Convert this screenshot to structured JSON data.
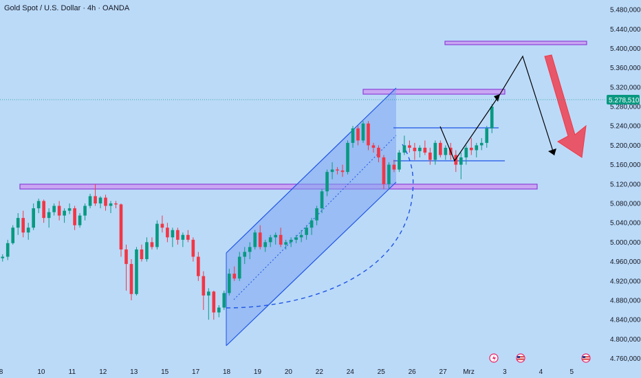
{
  "title": "Gold Spot / U.S. Dollar · 4h · OANDA",
  "current_price_label": "5.278,510",
  "colors": {
    "background": "#bbdaf8",
    "up": "#089981",
    "down": "#f23645",
    "zone_fill": "#c9a6f2",
    "zone_stroke": "#8b3fd8",
    "channel_fill": "#7ea6f0",
    "channel_stroke": "#1e53e5",
    "price_badge": "#089981",
    "arrow": "#f23645"
  },
  "chart_data": {
    "type": "candlestick",
    "title": "Gold Spot / U.S. Dollar · 4h · OANDA",
    "y_tick_labels": [
      "5.480,000",
      "5.440,000",
      "5.400,000",
      "5.360,000",
      "5.320,000",
      "5.280,000",
      "5.240,000",
      "5.200,000",
      "5.160,000",
      "5.120,000",
      "5.080,000",
      "5.040,000",
      "5.000,000",
      "4.960,000",
      "4.920,000",
      "4.880,000",
      "4.840,000",
      "4.800,000",
      "4.760,000"
    ],
    "y_ticks": [
      5480,
      5440,
      5400,
      5360,
      5320,
      5280,
      5240,
      5200,
      5160,
      5120,
      5080,
      5040,
      5000,
      4960,
      4920,
      4880,
      4840,
      4800,
      4760
    ],
    "ylim": [
      4748,
      5500
    ],
    "x_tick_labels": [
      "8",
      "10",
      "11",
      "12",
      "13",
      "15",
      "17",
      "18",
      "19",
      "20",
      "22",
      "24",
      "25",
      "26",
      "27",
      "Mrz",
      "3",
      "4",
      "5"
    ],
    "x_tick_index": [
      -0.3,
      7.5,
      13.5,
      19.5,
      25.5,
      31.5,
      37.5,
      43.5,
      49.5,
      55.5,
      61.5,
      67.5,
      73.5,
      79.5,
      85.5,
      90.5,
      97.5,
      104.5,
      110.5
    ],
    "x_range": [
      -0.5,
      117
    ],
    "current_price": 5278.51,
    "candles": [
      [
        4967,
        4975,
        4960,
        4970
      ],
      [
        4970,
        5005,
        4963,
        4998
      ],
      [
        4998,
        5035,
        4995,
        5030
      ],
      [
        5030,
        5060,
        5015,
        5050
      ],
      [
        5050,
        5065,
        5010,
        5020
      ],
      [
        5020,
        5040,
        5005,
        5030
      ],
      [
        5030,
        5080,
        5025,
        5070
      ],
      [
        5070,
        5090,
        5060,
        5085
      ],
      [
        5085,
        5088,
        5040,
        5050
      ],
      [
        5050,
        5070,
        5030,
        5062
      ],
      [
        5062,
        5080,
        5055,
        5075
      ],
      [
        5075,
        5085,
        5045,
        5055
      ],
      [
        5055,
        5070,
        5040,
        5065
      ],
      [
        5065,
        5080,
        5058,
        5070
      ],
      [
        5070,
        5075,
        5025,
        5035
      ],
      [
        5035,
        5060,
        5030,
        5055
      ],
      [
        5055,
        5080,
        5045,
        5075
      ],
      [
        5075,
        5100,
        5070,
        5095
      ],
      [
        5095,
        5120,
        5075,
        5080
      ],
      [
        5080,
        5095,
        5070,
        5092
      ],
      [
        5092,
        5098,
        5065,
        5075
      ],
      [
        5075,
        5085,
        5060,
        5080
      ],
      [
        5080,
        5085,
        5070,
        5078
      ],
      [
        5078,
        5080,
        4970,
        4985
      ],
      [
        4985,
        4995,
        4900,
        4955
      ],
      [
        4955,
        4965,
        4880,
        4893
      ],
      [
        4893,
        4990,
        4890,
        4985
      ],
      [
        4985,
        4995,
        4960,
        4965
      ],
      [
        4965,
        5010,
        4960,
        5000
      ],
      [
        5000,
        5010,
        4985,
        4990
      ],
      [
        4990,
        5045,
        4985,
        5038
      ],
      [
        5038,
        5055,
        5020,
        5030
      ],
      [
        5030,
        5040,
        5000,
        5010
      ],
      [
        5010,
        5030,
        4990,
        5025
      ],
      [
        5025,
        5030,
        4995,
        5005
      ],
      [
        5005,
        5020,
        4990,
        5015
      ],
      [
        5015,
        5025,
        5000,
        5005
      ],
      [
        5005,
        5010,
        4960,
        4970
      ],
      [
        4970,
        4980,
        4920,
        4930
      ],
      [
        4930,
        4940,
        4860,
        4890
      ],
      [
        4890,
        4905,
        4840,
        4898
      ],
      [
        4898,
        4900,
        4840,
        4855
      ],
      [
        4855,
        4870,
        4845,
        4865
      ],
      [
        4865,
        4900,
        4860,
        4895
      ],
      [
        4895,
        4945,
        4890,
        4935
      ],
      [
        4935,
        4950,
        4920,
        4925
      ],
      [
        4925,
        4980,
        4920,
        4970
      ],
      [
        4970,
        4990,
        4955,
        4980
      ],
      [
        4980,
        5000,
        4965,
        4990
      ],
      [
        4990,
        5025,
        4985,
        5020
      ],
      [
        5020,
        5035,
        4985,
        4990
      ],
      [
        4990,
        5005,
        4980,
        5000
      ],
      [
        5000,
        5015,
        4990,
        5010
      ],
      [
        5010,
        5020,
        4995,
        5015
      ],
      [
        5015,
        5030,
        4990,
        4995
      ],
      [
        4995,
        5005,
        4985,
        5000
      ],
      [
        5000,
        5010,
        4990,
        5005
      ],
      [
        5005,
        5015,
        4998,
        5010
      ],
      [
        5010,
        5025,
        5000,
        5015
      ],
      [
        5015,
        5035,
        5005,
        5030
      ],
      [
        5030,
        5050,
        5015,
        5045
      ],
      [
        5045,
        5075,
        5035,
        5070
      ],
      [
        5070,
        5110,
        5060,
        5105
      ],
      [
        5105,
        5150,
        5095,
        5145
      ],
      [
        5145,
        5165,
        5130,
        5150
      ],
      [
        5150,
        5155,
        5140,
        5148
      ],
      [
        5148,
        5160,
        5135,
        5145
      ],
      [
        5145,
        5210,
        5140,
        5205
      ],
      [
        5205,
        5240,
        5195,
        5235
      ],
      [
        5235,
        5240,
        5200,
        5210
      ],
      [
        5210,
        5250,
        5205,
        5245
      ],
      [
        5245,
        5250,
        5190,
        5200
      ],
      [
        5200,
        5205,
        5185,
        5195
      ],
      [
        5195,
        5200,
        5165,
        5175
      ],
      [
        5175,
        5180,
        5110,
        5120
      ],
      [
        5120,
        5165,
        5110,
        5160
      ],
      [
        5160,
        5170,
        5145,
        5150
      ],
      [
        5150,
        5190,
        5145,
        5185
      ],
      [
        5185,
        5220,
        5180,
        5200
      ],
      [
        5200,
        5210,
        5185,
        5195
      ],
      [
        5195,
        5205,
        5170,
        5188
      ],
      [
        5188,
        5200,
        5175,
        5195
      ],
      [
        5195,
        5210,
        5180,
        5185
      ],
      [
        5185,
        5195,
        5160,
        5170
      ],
      [
        5170,
        5210,
        5160,
        5205
      ],
      [
        5205,
        5210,
        5175,
        5180
      ],
      [
        5180,
        5200,
        5170,
        5195
      ],
      [
        5195,
        5205,
        5170,
        5180
      ],
      [
        5180,
        5190,
        5145,
        5160
      ],
      [
        5160,
        5185,
        5130,
        5175
      ],
      [
        5175,
        5200,
        5160,
        5195
      ],
      [
        5195,
        5215,
        5180,
        5190
      ],
      [
        5190,
        5205,
        5175,
        5200
      ],
      [
        5200,
        5215,
        5190,
        5205
      ],
      [
        5205,
        5240,
        5195,
        5235
      ],
      [
        5235,
        5285,
        5225,
        5280
      ]
    ]
  }
}
